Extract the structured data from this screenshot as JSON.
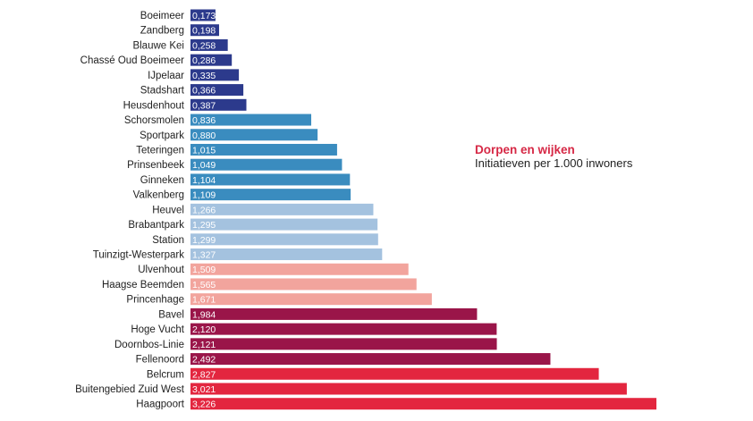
{
  "chart_data": {
    "type": "bar",
    "orientation": "horizontal",
    "title": "Dorpen en wijken",
    "subtitle": "Initiatieven per 1.000 inwoners",
    "xlabel": "",
    "ylabel": "",
    "xlim": [
      0,
      3.3
    ],
    "grid": false,
    "categories": [
      "Boeimeer",
      "Zandberg",
      "Blauwe Kei",
      "Chassé Oud Boeimeer",
      "IJpelaar",
      "Stadshart",
      "Heusdenhout",
      "Schorsmolen",
      "Sportpark",
      "Teteringen",
      "Prinsenbeek",
      "Ginneken",
      "Valkenberg",
      "Heuvel",
      "Brabantpark",
      "Station",
      "Tuinzigt-Westerpark",
      "Ulvenhout",
      "Haagse Beemden",
      "Princenhage",
      "Bavel",
      "Hoge Vucht",
      "Doornbos-Linie",
      "Fellenoord",
      "Belcrum",
      "Buitengebied Zuid West",
      "Haagpoort"
    ],
    "values": [
      0.173,
      0.198,
      0.258,
      0.286,
      0.335,
      0.366,
      0.387,
      0.836,
      0.88,
      1.015,
      1.049,
      1.104,
      1.109,
      1.266,
      1.295,
      1.299,
      1.327,
      1.509,
      1.565,
      1.671,
      1.984,
      2.12,
      2.121,
      2.492,
      2.827,
      3.021,
      3.226
    ],
    "value_labels": [
      "0,173",
      "0,198",
      "0,258",
      "0,286",
      "0,335",
      "0,366",
      "0,387",
      "0,836",
      "0,880",
      "1,015",
      "1,049",
      "1,104",
      "1,109",
      "1,266",
      "1,295",
      "1,299",
      "1,327",
      "1,509",
      "1,565",
      "1,671",
      "1,984",
      "2,120",
      "2,121",
      "2,492",
      "2,827",
      "3,021",
      "3,226"
    ],
    "groups": [
      0,
      0,
      0,
      0,
      0,
      0,
      0,
      1,
      1,
      1,
      1,
      1,
      1,
      2,
      2,
      2,
      2,
      3,
      3,
      3,
      4,
      4,
      4,
      4,
      5,
      5,
      5
    ],
    "group_colors": [
      "#2c3a8c",
      "#3a8cbf",
      "#a4c2df",
      "#f2a49d",
      "#9a1549",
      "#e3263f"
    ]
  },
  "legend": {
    "title": "Dorpen en wijken",
    "subtitle": "Initiatieven per 1.000 inwoners"
  }
}
